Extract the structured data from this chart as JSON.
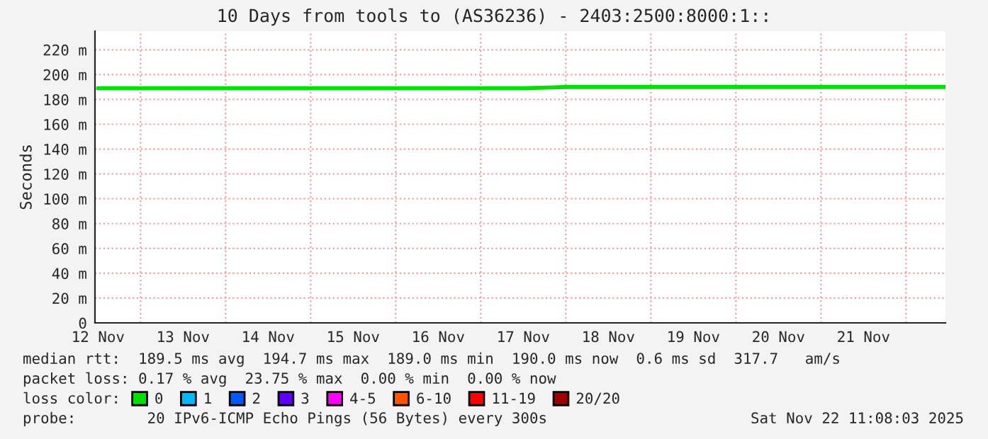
{
  "chart_data": {
    "type": "line",
    "title": "10 Days from tools to (AS36236) - 2403:2500:8000:1::",
    "ylabel": "Seconds",
    "x": [
      "2025-11-12T12:00",
      "2025-11-13T00:00",
      "2025-11-13T12:00",
      "2025-11-14T00:00",
      "2025-11-14T12:00",
      "2025-11-15T00:00",
      "2025-11-15T12:00",
      "2025-11-16T00:00",
      "2025-11-16T12:00",
      "2025-11-17T00:00",
      "2025-11-17T12:00",
      "2025-11-18T00:00",
      "2025-11-18T12:00",
      "2025-11-19T00:00",
      "2025-11-19T12:00",
      "2025-11-20T00:00",
      "2025-11-20T12:00",
      "2025-11-21T00:00",
      "2025-11-21T12:00",
      "2025-11-22T00:00",
      "2025-11-22T11:00"
    ],
    "series": [
      {
        "name": "0",
        "color": "#00e000",
        "values": [
          189,
          189,
          189,
          189,
          189,
          189,
          189,
          189,
          189,
          189,
          189,
          190,
          190,
          190,
          190,
          190,
          190,
          190,
          190,
          190,
          190
        ]
      },
      {
        "name": "1",
        "color": "#00b8ff",
        "values": [
          null,
          null,
          null,
          null,
          null,
          null,
          null,
          null,
          null,
          null,
          null,
          null,
          null,
          null,
          null,
          null,
          null,
          null,
          null,
          null,
          null
        ]
      },
      {
        "name": "2",
        "color": "#0059ff",
        "values": [
          null,
          null,
          null,
          null,
          null,
          null,
          null,
          null,
          null,
          null,
          null,
          null,
          null,
          null,
          null,
          null,
          null,
          null,
          null,
          null,
          null
        ]
      },
      {
        "name": "3",
        "color": "#5e00ff",
        "values": [
          null,
          null,
          null,
          null,
          null,
          null,
          null,
          null,
          null,
          null,
          null,
          null,
          null,
          null,
          null,
          null,
          null,
          null,
          null,
          null,
          null
        ]
      },
      {
        "name": "4-5",
        "color": "#ff00ff",
        "values": [
          null,
          null,
          null,
          null,
          null,
          null,
          null,
          null,
          null,
          null,
          null,
          null,
          null,
          null,
          null,
          null,
          null,
          null,
          null,
          null,
          null
        ]
      },
      {
        "name": "6-10",
        "color": "#ff5500",
        "values": [
          null,
          null,
          null,
          null,
          null,
          null,
          null,
          null,
          null,
          null,
          null,
          null,
          null,
          null,
          null,
          null,
          null,
          null,
          null,
          null,
          null
        ]
      },
      {
        "name": "11-19",
        "color": "#ff0000",
        "values": [
          null,
          null,
          null,
          null,
          null,
          null,
          null,
          null,
          null,
          null,
          null,
          null,
          null,
          null,
          null,
          null,
          null,
          null,
          null,
          null,
          null
        ]
      },
      {
        "name": "20/20",
        "color": "#a10000",
        "values": [
          null,
          null,
          null,
          null,
          null,
          null,
          null,
          null,
          null,
          null,
          null,
          null,
          null,
          null,
          null,
          null,
          null,
          null,
          null,
          null,
          null
        ]
      }
    ],
    "legend_title": "loss color:",
    "legend": "bottom",
    "xlim": [
      "2025-11-12T11:08",
      "2025-11-22T11:08"
    ],
    "xticks": [
      {
        "value": "2025-11-12T12:00",
        "label": "12 Nov"
      },
      {
        "value": "2025-11-13T12:00",
        "label": "13 Nov"
      },
      {
        "value": "2025-11-14T12:00",
        "label": "14 Nov"
      },
      {
        "value": "2025-11-15T12:00",
        "label": "15 Nov"
      },
      {
        "value": "2025-11-16T12:00",
        "label": "16 Nov"
      },
      {
        "value": "2025-11-17T12:00",
        "label": "17 Nov"
      },
      {
        "value": "2025-11-18T12:00",
        "label": "18 Nov"
      },
      {
        "value": "2025-11-19T12:00",
        "label": "19 Nov"
      },
      {
        "value": "2025-11-20T12:00",
        "label": "20 Nov"
      },
      {
        "value": "2025-11-21T12:00",
        "label": "21 Nov"
      }
    ],
    "ylim": [
      0,
      235
    ],
    "yticks": [
      0,
      {
        "value": 20,
        "label": "20 m"
      },
      {
        "value": 40,
        "label": "40 m"
      },
      {
        "value": 60,
        "label": "60 m"
      },
      {
        "value": 80,
        "label": "80 m"
      },
      {
        "value": 100,
        "label": "100 m"
      },
      {
        "value": 120,
        "label": "120 m"
      },
      {
        "value": 140,
        "label": "140 m"
      },
      {
        "value": 160,
        "label": "160 m"
      },
      {
        "value": 180,
        "label": "180 m"
      },
      {
        "value": 200,
        "label": "200 m"
      },
      {
        "value": 220,
        "label": "220 m"
      }
    ],
    "grid": true,
    "annotations": [
      "median rtt:  189.5 ms avg  194.7 ms max  189.0 ms min  190.0 ms now  0.6 ms sd  317.7   am/s",
      "packet loss: 0.17 % avg  23.75 % max  0.00 % min  0.00 % now",
      "probe:        20 IPv6-ICMP Echo Pings (56 Bytes) every 300s",
      "Sat Nov 22 11:08:03 2025"
    ]
  }
}
